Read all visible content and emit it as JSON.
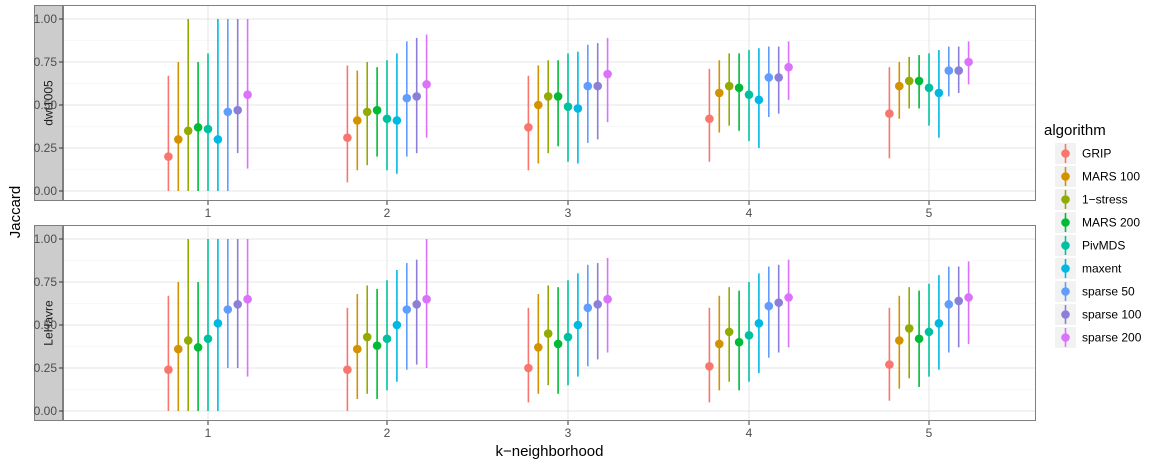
{
  "chart_data": {
    "type": "scatter",
    "subtype": "pointrange",
    "xlabel": "k−neighborhood",
    "ylabel": "Jaccard",
    "x_categories": [
      "1",
      "2",
      "3",
      "4",
      "5"
    ],
    "ylim": [
      0,
      1
    ],
    "y_ticks": [
      "0.00",
      "0.25",
      "0.50",
      "0.75",
      "1.00"
    ],
    "grid": true,
    "legend": {
      "title": "algorithm",
      "placement": "right"
    },
    "series": [
      {
        "name": "GRIP",
        "color": "#F8766D"
      },
      {
        "name": "MARS 100",
        "color": "#D39200"
      },
      {
        "name": "1−stress",
        "color": "#93AA00"
      },
      {
        "name": "MARS 200",
        "color": "#00BA38"
      },
      {
        "name": "PivMDS",
        "color": "#00C19F"
      },
      {
        "name": "maxent",
        "color": "#00B9E3"
      },
      {
        "name": "sparse 50",
        "color": "#619CFF"
      },
      {
        "name": "sparse 100",
        "color": "#8B7FD8"
      },
      {
        "name": "sparse 200",
        "color": "#DB72FB"
      }
    ],
    "panels": [
      {
        "label": "dwt1005",
        "points": [
          [
            [
              0.2,
              0.0,
              0.67
            ],
            [
              0.3,
              0.0,
              0.75
            ],
            [
              0.35,
              0.0,
              1.0
            ],
            [
              0.37,
              0.0,
              0.75
            ],
            [
              0.36,
              0.0,
              0.8
            ],
            [
              0.3,
              0.0,
              1.0
            ],
            [
              0.46,
              0.0,
              1.0
            ],
            [
              0.47,
              0.22,
              1.0
            ],
            [
              0.56,
              0.13,
              1.0
            ]
          ],
          [
            [
              0.31,
              0.05,
              0.73
            ],
            [
              0.41,
              0.12,
              0.7
            ],
            [
              0.46,
              0.15,
              0.75
            ],
            [
              0.47,
              0.2,
              0.72
            ],
            [
              0.42,
              0.12,
              0.76
            ],
            [
              0.41,
              0.1,
              0.8
            ],
            [
              0.54,
              0.2,
              0.87
            ],
            [
              0.55,
              0.22,
              0.89
            ],
            [
              0.62,
              0.31,
              0.91
            ]
          ],
          [
            [
              0.37,
              0.12,
              0.67
            ],
            [
              0.5,
              0.16,
              0.73
            ],
            [
              0.55,
              0.22,
              0.76
            ],
            [
              0.55,
              0.26,
              0.76
            ],
            [
              0.49,
              0.17,
              0.8
            ],
            [
              0.48,
              0.16,
              0.81
            ],
            [
              0.61,
              0.28,
              0.85
            ],
            [
              0.61,
              0.3,
              0.86
            ],
            [
              0.68,
              0.4,
              0.89
            ]
          ],
          [
            [
              0.42,
              0.17,
              0.71
            ],
            [
              0.57,
              0.34,
              0.76
            ],
            [
              0.61,
              0.38,
              0.8
            ],
            [
              0.6,
              0.35,
              0.8
            ],
            [
              0.56,
              0.29,
              0.82
            ],
            [
              0.53,
              0.25,
              0.83
            ],
            [
              0.66,
              0.43,
              0.84
            ],
            [
              0.66,
              0.45,
              0.84
            ],
            [
              0.72,
              0.53,
              0.87
            ]
          ],
          [
            [
              0.45,
              0.19,
              0.72
            ],
            [
              0.61,
              0.42,
              0.75
            ],
            [
              0.64,
              0.48,
              0.78
            ],
            [
              0.64,
              0.48,
              0.79
            ],
            [
              0.6,
              0.38,
              0.8
            ],
            [
              0.57,
              0.31,
              0.82
            ],
            [
              0.7,
              0.55,
              0.84
            ],
            [
              0.7,
              0.57,
              0.84
            ],
            [
              0.75,
              0.62,
              0.87
            ]
          ]
        ]
      },
      {
        "label": "LeHavre",
        "points": [
          [
            [
              0.24,
              0.0,
              0.67
            ],
            [
              0.36,
              0.0,
              0.75
            ],
            [
              0.41,
              0.0,
              1.0
            ],
            [
              0.37,
              0.0,
              0.75
            ],
            [
              0.42,
              0.0,
              1.0
            ],
            [
              0.51,
              0.0,
              1.0
            ],
            [
              0.59,
              0.25,
              1.0
            ],
            [
              0.62,
              0.25,
              1.0
            ],
            [
              0.65,
              0.2,
              1.0
            ]
          ],
          [
            [
              0.24,
              0.0,
              0.6
            ],
            [
              0.36,
              0.07,
              0.68
            ],
            [
              0.43,
              0.1,
              0.73
            ],
            [
              0.38,
              0.07,
              0.71
            ],
            [
              0.42,
              0.12,
              0.76
            ],
            [
              0.5,
              0.17,
              0.82
            ],
            [
              0.59,
              0.24,
              0.86
            ],
            [
              0.62,
              0.27,
              0.88
            ],
            [
              0.65,
              0.25,
              1.0
            ]
          ],
          [
            [
              0.25,
              0.05,
              0.6
            ],
            [
              0.37,
              0.1,
              0.68
            ],
            [
              0.45,
              0.15,
              0.73
            ],
            [
              0.39,
              0.1,
              0.72
            ],
            [
              0.43,
              0.15,
              0.76
            ],
            [
              0.5,
              0.2,
              0.8
            ],
            [
              0.6,
              0.26,
              0.85
            ],
            [
              0.62,
              0.3,
              0.86
            ],
            [
              0.65,
              0.34,
              0.89
            ]
          ],
          [
            [
              0.26,
              0.05,
              0.6
            ],
            [
              0.39,
              0.12,
              0.67
            ],
            [
              0.46,
              0.17,
              0.72
            ],
            [
              0.4,
              0.12,
              0.7
            ],
            [
              0.44,
              0.17,
              0.75
            ],
            [
              0.51,
              0.22,
              0.8
            ],
            [
              0.61,
              0.31,
              0.84
            ],
            [
              0.63,
              0.34,
              0.85
            ],
            [
              0.66,
              0.37,
              0.88
            ]
          ],
          [
            [
              0.27,
              0.06,
              0.6
            ],
            [
              0.41,
              0.13,
              0.67
            ],
            [
              0.48,
              0.19,
              0.72
            ],
            [
              0.42,
              0.14,
              0.7
            ],
            [
              0.46,
              0.2,
              0.74
            ],
            [
              0.51,
              0.24,
              0.79
            ],
            [
              0.62,
              0.34,
              0.84
            ],
            [
              0.64,
              0.37,
              0.84
            ],
            [
              0.66,
              0.39,
              0.87
            ]
          ]
        ]
      }
    ]
  }
}
